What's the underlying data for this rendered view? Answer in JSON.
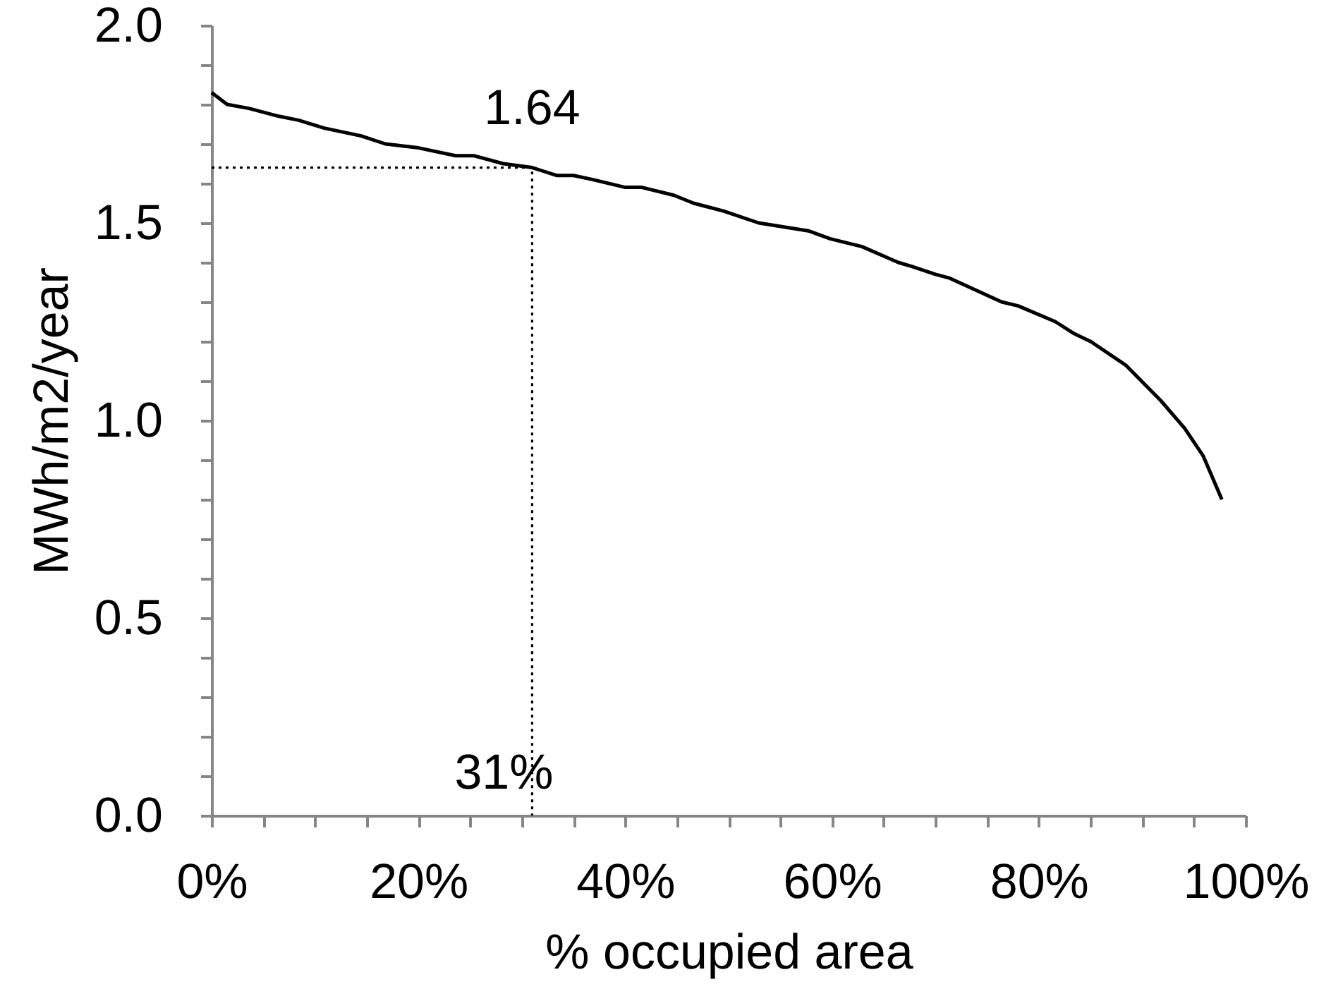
{
  "chart_data": {
    "type": "line",
    "xlabel": "% occupied area",
    "ylabel": "MWh/m2/year",
    "xlim": [
      0,
      100
    ],
    "ylim": [
      0,
      2
    ],
    "xticks": [
      {
        "value": 0,
        "label": "0%"
      },
      {
        "value": 5,
        "label": null
      },
      {
        "value": 10,
        "label": null
      },
      {
        "value": 15,
        "label": null
      },
      {
        "value": 20,
        "label": "20%"
      },
      {
        "value": 25,
        "label": null
      },
      {
        "value": 30,
        "label": null
      },
      {
        "value": 35,
        "label": null
      },
      {
        "value": 40,
        "label": "40%"
      },
      {
        "value": 45,
        "label": null
      },
      {
        "value": 50,
        "label": null
      },
      {
        "value": 55,
        "label": null
      },
      {
        "value": 60,
        "label": "60%"
      },
      {
        "value": 65,
        "label": null
      },
      {
        "value": 70,
        "label": null
      },
      {
        "value": 75,
        "label": null
      },
      {
        "value": 80,
        "label": "80%"
      },
      {
        "value": 85,
        "label": null
      },
      {
        "value": 90,
        "label": null
      },
      {
        "value": 95,
        "label": null
      },
      {
        "value": 100,
        "label": "100%"
      }
    ],
    "yticks": [
      {
        "value": 0,
        "label": "0.0"
      },
      {
        "value": 0.1,
        "label": null
      },
      {
        "value": 0.2,
        "label": null
      },
      {
        "value": 0.3,
        "label": null
      },
      {
        "value": 0.4,
        "label": null
      },
      {
        "value": 0.5,
        "label": "0.5"
      },
      {
        "value": 0.6,
        "label": null
      },
      {
        "value": 0.7,
        "label": null
      },
      {
        "value": 0.8,
        "label": null
      },
      {
        "value": 0.9,
        "label": null
      },
      {
        "value": 1,
        "label": "1.0"
      },
      {
        "value": 1.1,
        "label": null
      },
      {
        "value": 1.2,
        "label": null
      },
      {
        "value": 1.3,
        "label": null
      },
      {
        "value": 1.4,
        "label": null
      },
      {
        "value": 1.5,
        "label": "1.5"
      },
      {
        "value": 1.6,
        "label": null
      },
      {
        "value": 1.7,
        "label": null
      },
      {
        "value": 1.8,
        "label": null
      },
      {
        "value": 1.9,
        "label": null
      },
      {
        "value": 2,
        "label": "2.0"
      }
    ],
    "series": [
      {
        "color": "#000000",
        "line_style": "dotted",
        "x": [
          0,
          31,
          31
        ],
        "values": [
          1.64,
          1.64,
          0
        ]
      },
      {
        "color": "#000000",
        "line_style": "solid",
        "x": [
          0,
          1.5,
          3.6,
          6.5,
          8.4,
          10.9,
          14.5,
          16.8,
          20,
          23.6,
          25.4,
          28.2,
          31,
          33.4,
          35,
          36.8,
          40,
          41.6,
          44.7,
          46.6,
          49.5,
          52.9,
          57.7,
          59.8,
          62.9,
          66.4,
          67.7,
          70,
          71.4,
          76.4,
          78,
          81.6,
          83.4,
          85,
          88.4,
          91.8,
          94.1,
          95.9,
          97.7
        ],
        "values": [
          1.83,
          1.8,
          1.79,
          1.77,
          1.76,
          1.74,
          1.72,
          1.7,
          1.69,
          1.67,
          1.67,
          1.65,
          1.64,
          1.62,
          1.62,
          1.61,
          1.59,
          1.59,
          1.57,
          1.55,
          1.53,
          1.5,
          1.48,
          1.46,
          1.44,
          1.4,
          1.39,
          1.37,
          1.36,
          1.3,
          1.29,
          1.25,
          1.22,
          1.2,
          1.14,
          1.05,
          0.98,
          0.91,
          0.8
        ]
      }
    ],
    "annotations": [
      {
        "text": "1.64",
        "x": 31,
        "y": 1.64
      },
      {
        "text": "31%",
        "x": 31,
        "y": 0
      }
    ]
  }
}
